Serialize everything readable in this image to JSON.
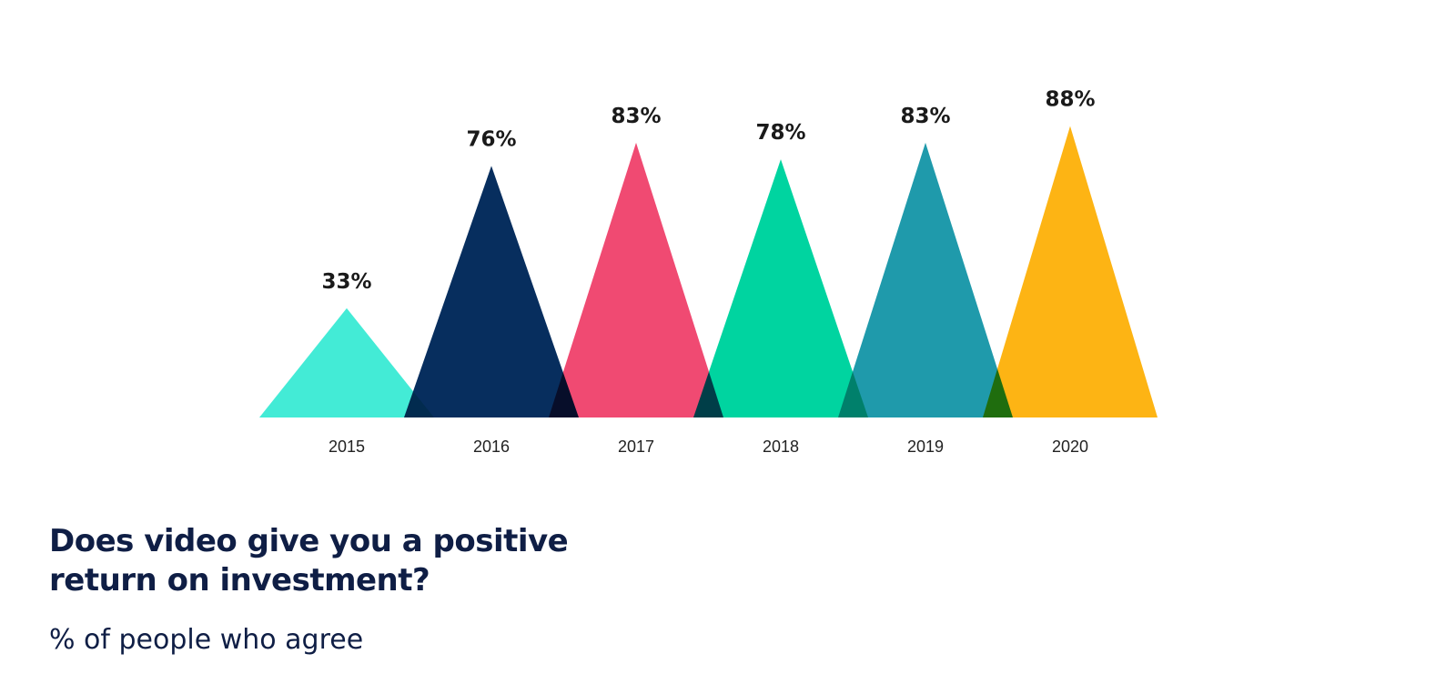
{
  "chart_data": {
    "type": "bar",
    "mark": "triangle",
    "title": "Does video give you a positive return on investment?",
    "subtitle": "% of people who agree",
    "categories": [
      "2015",
      "2016",
      "2017",
      "2018",
      "2019",
      "2020"
    ],
    "values": [
      33,
      76,
      83,
      78,
      83,
      88
    ],
    "value_labels": [
      "33%",
      "76%",
      "83%",
      "78%",
      "83%",
      "88%"
    ],
    "colors": [
      "#43EBD6",
      "#072E5E",
      "#F04A72",
      "#00D4A0",
      "#1F9AAB",
      "#FDB414"
    ],
    "ylim": [
      0,
      100
    ],
    "grid": false,
    "legend": "none"
  }
}
